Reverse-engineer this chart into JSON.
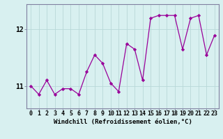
{
  "x": [
    0,
    1,
    2,
    3,
    4,
    5,
    6,
    7,
    8,
    9,
    10,
    11,
    12,
    13,
    14,
    15,
    16,
    17,
    18,
    19,
    20,
    21,
    22,
    23
  ],
  "y": [
    11.0,
    10.85,
    11.1,
    10.85,
    10.95,
    10.95,
    10.85,
    11.25,
    11.55,
    11.4,
    11.05,
    10.9,
    11.75,
    11.65,
    11.1,
    12.2,
    12.25,
    12.25,
    12.25,
    11.65,
    12.2,
    12.25,
    11.55,
    11.9
  ],
  "line_color": "#990099",
  "marker": "D",
  "marker_size": 2.2,
  "xlabel": "Windchill (Refroidissement éolien,°C)",
  "xlabel_fontsize": 6.5,
  "bg_color": "#d8f0f0",
  "grid_color": "#b8d8d8",
  "ytick_labels": [
    "11",
    "12"
  ],
  "ytick_values": [
    11,
    12
  ],
  "ylim": [
    10.6,
    12.45
  ],
  "xlim": [
    -0.5,
    23.5
  ],
  "tick_fontsize": 6.0,
  "spine_color": "#8080a0"
}
